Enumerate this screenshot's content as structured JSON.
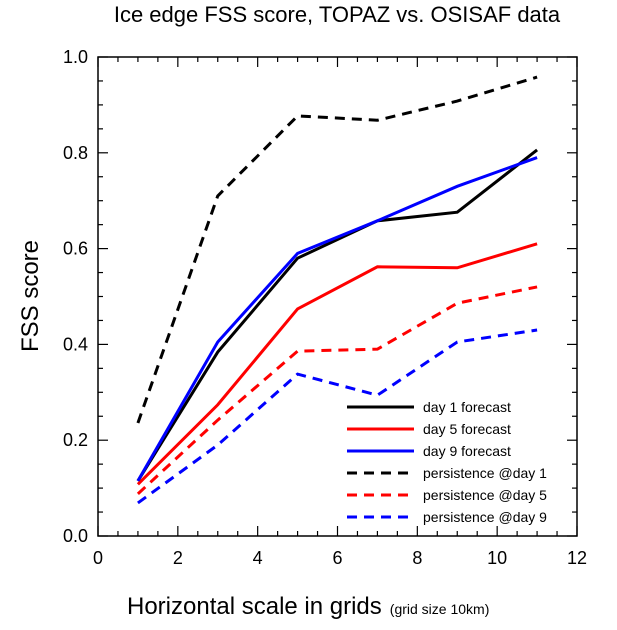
{
  "chart_data": {
    "type": "line",
    "title": "Ice edge FSS score, TOPAZ vs. OSISAF data",
    "xlabel": "Horizontal scale in grids",
    "xlabel_note": "(grid size 10km)",
    "ylabel": "FSS score",
    "xlim": [
      0,
      12
    ],
    "ylim": [
      0,
      1.0
    ],
    "xticks": [
      "0",
      "2",
      "4",
      "6",
      "8",
      "10",
      "12"
    ],
    "yticks": [
      "0.0",
      "0.2",
      "0.4",
      "0.6",
      "0.8",
      "1.0"
    ],
    "grid": false,
    "legend_position": "bottom-right",
    "x": [
      1,
      3,
      5,
      7,
      9,
      11
    ],
    "series": [
      {
        "name": "day 1 forecast",
        "color": "#000000",
        "dashed": false,
        "values": [
          0.115,
          0.384,
          0.58,
          0.658,
          0.676,
          0.806
        ]
      },
      {
        "name": "day 5 forecast",
        "color": "#ff0000",
        "dashed": false,
        "values": [
          0.108,
          0.274,
          0.474,
          0.562,
          0.56,
          0.61
        ]
      },
      {
        "name": "day 9 forecast",
        "color": "#0000ff",
        "dashed": false,
        "values": [
          0.115,
          0.405,
          0.59,
          0.658,
          0.73,
          0.79
        ]
      },
      {
        "name": "persistence @day 1",
        "color": "#000000",
        "dashed": true,
        "values": [
          0.236,
          0.71,
          0.877,
          0.868,
          0.908,
          0.958
        ]
      },
      {
        "name": "persistence @day 5",
        "color": "#ff0000",
        "dashed": true,
        "values": [
          0.088,
          0.242,
          0.386,
          0.39,
          0.486,
          0.52
        ]
      },
      {
        "name": "persistence @day 9",
        "color": "#0000ff",
        "dashed": true,
        "values": [
          0.069,
          0.19,
          0.338,
          0.294,
          0.405,
          0.43
        ]
      }
    ]
  }
}
